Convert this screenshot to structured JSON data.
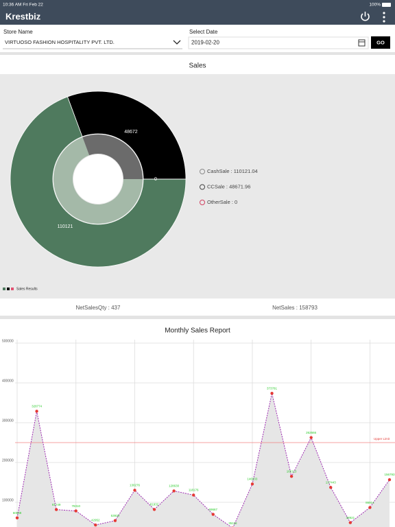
{
  "status_bar": {
    "time": "10:36 AM  Fri Feb 22",
    "battery": "100%"
  },
  "app_bar": {
    "title": "Krestbiz"
  },
  "filters": {
    "store_label": "Store Name",
    "store_value": "VIRTUOSO FASHION HOSPITALITY PVT. LTD.",
    "date_label": "Select Date",
    "date_value": "2019-02-20",
    "button": "GO"
  },
  "sales": {
    "title": "Sales",
    "chart": {
      "type": "donut",
      "values": [
        110121.04,
        48671.96,
        0
      ],
      "value_labels": [
        "110121",
        "48672",
        "0"
      ],
      "colors": [
        "#4f7a5e",
        "#000000",
        "#e05070"
      ],
      "inner_colors": [
        "#a4b9a8",
        "#6b6b6b",
        "#e05070"
      ],
      "legend": [
        "CashSale : 110121.04",
        "CCSale : 48671.96",
        "OtherSale : 0"
      ],
      "legend_colors": [
        "#8a8a8a",
        "#444444",
        "#d04060"
      ],
      "series_name": "Sales Results"
    },
    "net_sales_qty": "NetSalesQty : 437",
    "net_sales": "NetSales : 158793"
  },
  "monthly": {
    "title": "Monthly Sales Report",
    "chart": {
      "type": "line",
      "values": [
        60838,
        328774,
        81749,
        78310,
        42952,
        53930,
        130276,
        81932,
        128630,
        118176,
        69667,
        35118,
        146033,
        373781,
        165113,
        262666,
        137443,
        48921,
        86914,
        156793
      ],
      "ylim": [
        0,
        500000
      ],
      "yticks": [
        100000,
        200000,
        300000,
        400000,
        500000
      ],
      "upper_limit": 250000,
      "upper_limit_label": "Upper Limit",
      "line_color": "#9c27b0",
      "point_color": "#e53935",
      "label_color": "#2ecc2e",
      "grid": true
    }
  }
}
